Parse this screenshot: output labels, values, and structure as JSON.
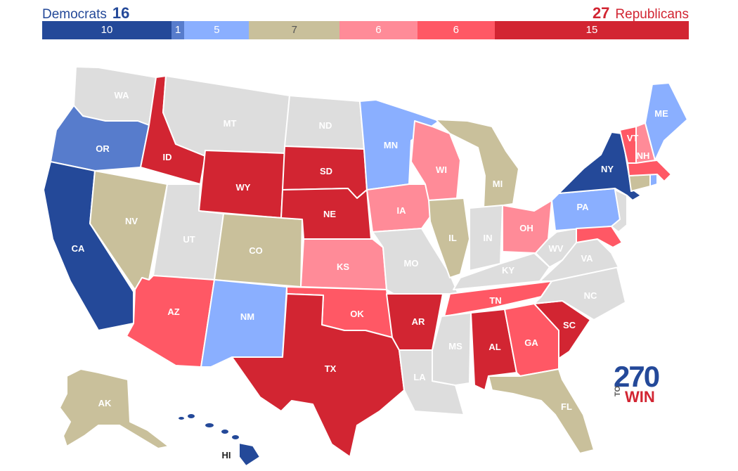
{
  "header": {
    "dem_label": "Democrats",
    "dem_total": "16",
    "rep_total": "27",
    "rep_label": "Republicans"
  },
  "colors": {
    "safe_d": "#244999",
    "likely_d": "#577ccc",
    "lean_d": "#8aafff",
    "tossup": "#c9c09b",
    "lean_r": "#ff8b98",
    "likely_r": "#ff5865",
    "safe_r": "#d22532",
    "no_race": "#dddddd"
  },
  "rating_bar": [
    {
      "label": "10",
      "value": 10,
      "color": "#244999"
    },
    {
      "label": "1",
      "value": 1,
      "color": "#577ccc"
    },
    {
      "label": "5",
      "value": 5,
      "color": "#8aafff"
    },
    {
      "label": "7",
      "value": 7,
      "color": "#c9c09b"
    },
    {
      "label": "6",
      "value": 6,
      "color": "#ff8b98"
    },
    {
      "label": "6",
      "value": 6,
      "color": "#ff5865"
    },
    {
      "label": "15",
      "value": 15,
      "color": "#d22532"
    }
  ],
  "states": {
    "WA": "WA",
    "OR": "OR",
    "CA": "CA",
    "ID": "ID",
    "NV": "NV",
    "MT": "MT",
    "WY": "WY",
    "UT": "UT",
    "AZ": "AZ",
    "CO": "CO",
    "NM": "NM",
    "ND": "ND",
    "SD": "SD",
    "NE": "NE",
    "KS": "KS",
    "OK": "OK",
    "TX": "TX",
    "MN": "MN",
    "IA": "IA",
    "MO": "MO",
    "AR": "AR",
    "LA": "LA",
    "WI": "WI",
    "IL": "IL",
    "MI": "MI",
    "IN": "IN",
    "OH": "OH",
    "KY": "KY",
    "TN": "TN",
    "MS": "MS",
    "AL": "AL",
    "GA": "GA",
    "FL": "FL",
    "SC": "SC",
    "NC": "NC",
    "VA": "VA",
    "WV": "WV",
    "PA": "PA",
    "NY": "NY",
    "VT": "VT",
    "NH": "NH",
    "ME": "ME",
    "AK": "AK",
    "HI": "HI"
  },
  "logo": {
    "line1": "270",
    "small": "TO",
    "line2": "WIN"
  }
}
